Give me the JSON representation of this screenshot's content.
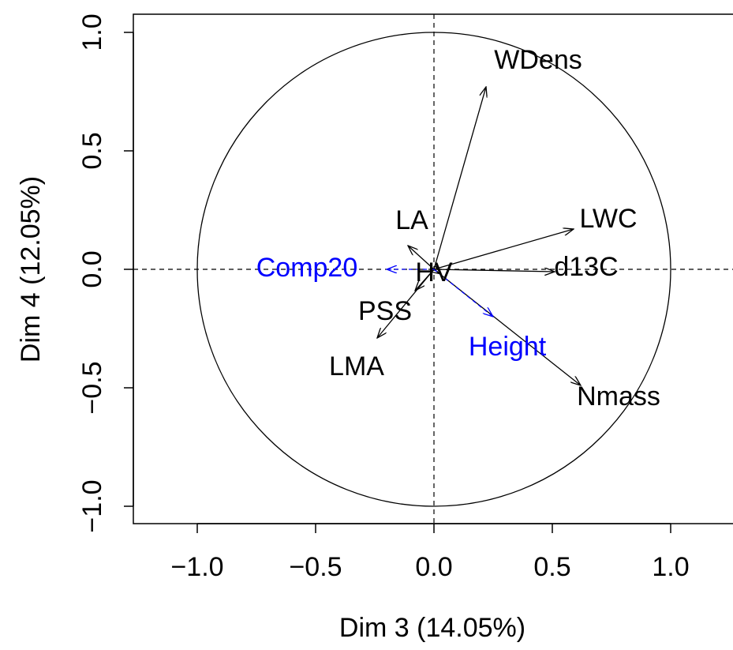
{
  "chart_data": {
    "type": "scatter",
    "subtype": "pca-correlation-circle",
    "xlabel": "Dim 3 (14.05%)",
    "ylabel": "Dim 4 (12.05%)",
    "xlim": [
      -1.3,
      1.3
    ],
    "ylim": [
      -1.08,
      1.08
    ],
    "x_ticks": [
      -1.0,
      -0.5,
      0.0,
      0.5,
      1.0
    ],
    "x_tick_labels": [
      "−1.0",
      "−0.5",
      "0.0",
      "0.5",
      "1.0"
    ],
    "y_ticks": [
      -1.0,
      -0.5,
      0.0,
      0.5,
      1.0
    ],
    "y_tick_labels": [
      "−1.0",
      "−0.5",
      "0.0",
      "0.5",
      "1.0"
    ],
    "unit_circle": true,
    "reference_lines": "dashed at x=0 and y=0",
    "active_color": "#000000",
    "supplementary_color": "#0000ff",
    "variables": [
      {
        "name": "WDens",
        "x": 0.22,
        "y": 0.77,
        "supplementary": false
      },
      {
        "name": "LWC",
        "x": 0.59,
        "y": 0.17,
        "supplementary": false
      },
      {
        "name": "d13C",
        "x": 0.51,
        "y": -0.01,
        "supplementary": false
      },
      {
        "name": "LA",
        "x": -0.11,
        "y": 0.1,
        "supplementary": false
      },
      {
        "name": "HV",
        "x": 0.03,
        "y": -0.02,
        "supplementary": false
      },
      {
        "name": "PSS",
        "x": -0.08,
        "y": -0.09,
        "supplementary": false
      },
      {
        "name": "LMA",
        "x": -0.24,
        "y": -0.29,
        "supplementary": false
      },
      {
        "name": "Nmass",
        "x": 0.62,
        "y": -0.49,
        "supplementary": false
      },
      {
        "name": "Comp20",
        "x": -0.2,
        "y": 0.0,
        "supplementary": true
      },
      {
        "name": "Height",
        "x": 0.25,
        "y": -0.2,
        "supplementary": true
      }
    ]
  }
}
